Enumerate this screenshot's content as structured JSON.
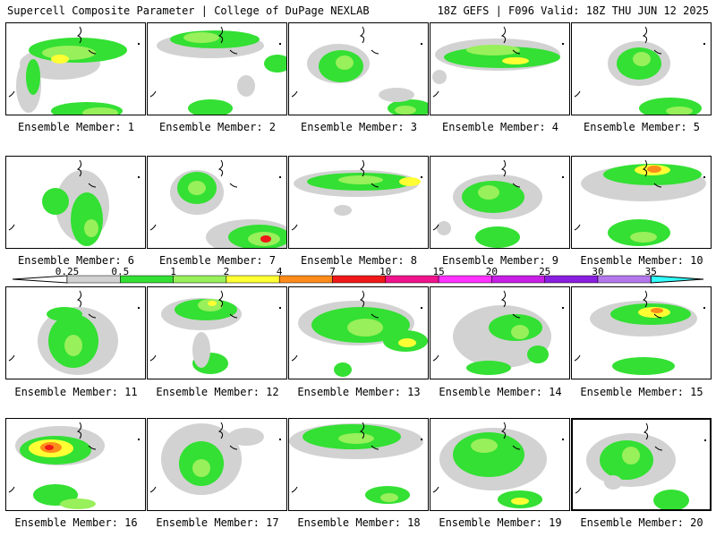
{
  "header": {
    "left": "Supercell Composite Parameter | College of DuPage NEXLAB",
    "right": "18Z GEFS | F096 Valid: 18Z THU JUN 12 2025"
  },
  "legend": {
    "thresholds": [
      "0.25",
      "0.5",
      "1",
      "2",
      "4",
      "7",
      "10",
      "15",
      "20",
      "25",
      "30",
      "35"
    ],
    "colors": [
      "#d2d2d2",
      "#33e033",
      "#98f05a",
      "#ffff33",
      "#ff8c1a",
      "#f01818",
      "#f0148c",
      "#ff32ff",
      "#c81ee6",
      "#8a1ee0",
      "#b478ec",
      "#33ffff"
    ]
  },
  "panels": [
    {
      "label": "Ensemble Member: 1"
    },
    {
      "label": "Ensemble Member: 2"
    },
    {
      "label": "Ensemble Member: 3"
    },
    {
      "label": "Ensemble Member: 4"
    },
    {
      "label": "Ensemble Member: 5"
    },
    {
      "label": "Ensemble Member: 6"
    },
    {
      "label": "Ensemble Member: 7"
    },
    {
      "label": "Ensemble Member: 8"
    },
    {
      "label": "Ensemble Member: 9"
    },
    {
      "label": "Ensemble Member: 10"
    },
    {
      "label": "Ensemble Member: 11"
    },
    {
      "label": "Ensemble Member: 12"
    },
    {
      "label": "Ensemble Member: 13"
    },
    {
      "label": "Ensemble Member: 14"
    },
    {
      "label": "Ensemble Member: 15"
    },
    {
      "label": "Ensemble Member: 16"
    },
    {
      "label": "Ensemble Member: 17"
    },
    {
      "label": "Ensemble Member: 18"
    },
    {
      "label": "Ensemble Member: 19"
    },
    {
      "label": "Ensemble Member: 20"
    }
  ]
}
